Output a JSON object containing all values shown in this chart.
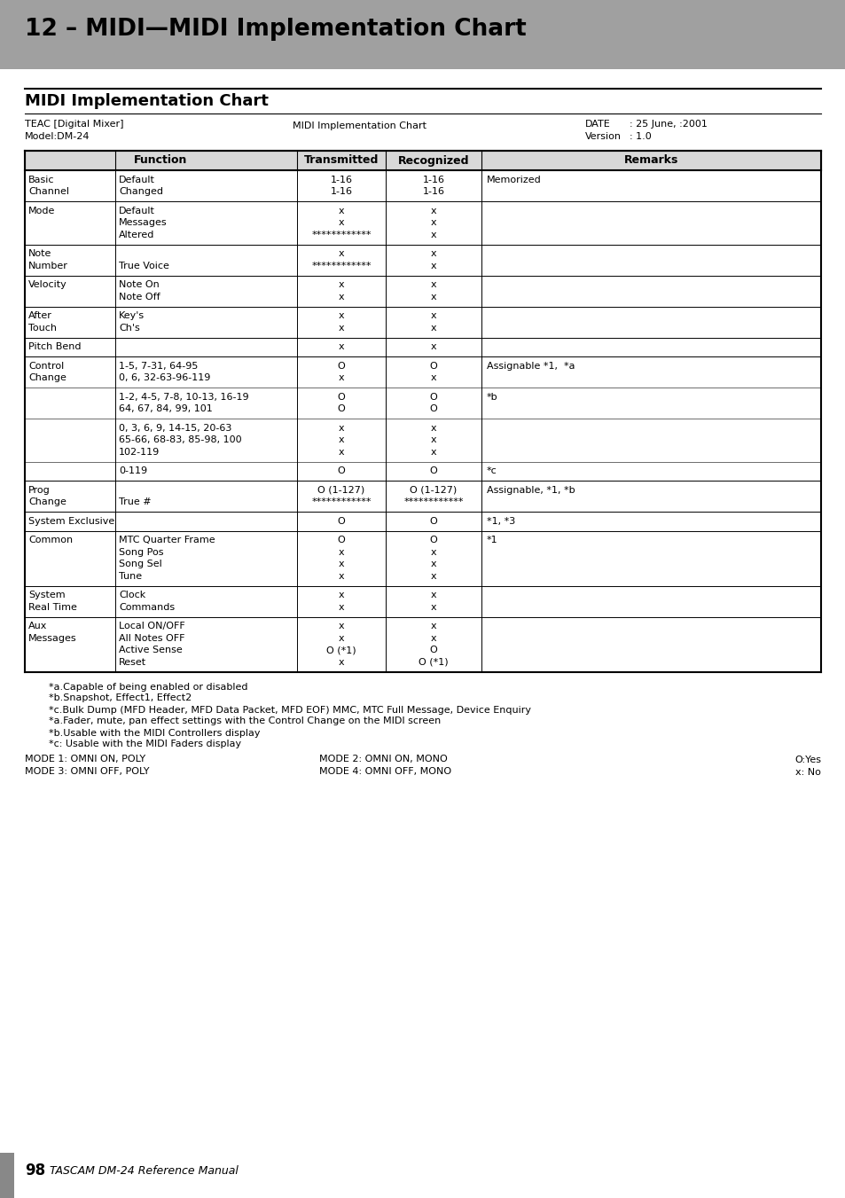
{
  "page_title": "12 – MIDI—MIDI Implementation Chart",
  "section_title": "MIDI Implementation Chart",
  "device_name": "TEAC [Digital Mixer]",
  "model": "Model:DM-24",
  "midi_chart_label": "MIDI Implementation Chart",
  "date_label": "DATE",
  "date_value": ": 25 June, :2001",
  "version_label": "Version",
  "version_value": ": 1.0",
  "table_headers": [
    "Function",
    "Transmitted",
    "Recognized",
    "Remarks"
  ],
  "footnotes": [
    "*a.Capable of being enabled or disabled",
    "*b.Snapshot, Effect1, Effect2",
    "*c.Bulk Dump (MFD Header, MFD Data Packet, MFD EOF) MMC, MTC Full Message, Device Enquiry",
    "*a.Fader, mute, pan effect settings with the Control Change on the MIDI screen",
    "*b.Usable with the MIDI Controllers display",
    "*c: Usable with the MIDI Faders display"
  ],
  "mode_lines": [
    [
      "MODE 1: OMNI ON, POLY",
      "MODE 2: OMNI ON, MONO",
      "O:Yes"
    ],
    [
      "MODE 3: OMNI OFF, POLY",
      "MODE 4: OMNI OFF, MONO",
      "x: No"
    ]
  ],
  "page_number": "98",
  "page_footer": "TASCAM DM-24 Reference Manual",
  "rows": [
    {
      "col1": [
        "Basic",
        "Channel"
      ],
      "col2": [
        "Default",
        "Changed"
      ],
      "col3": [
        "1-16",
        "1-16"
      ],
      "col4": [
        "1-16",
        "1-16"
      ],
      "col5": [
        "Memorized"
      ]
    },
    {
      "col1": [
        "Mode"
      ],
      "col2": [
        "Default",
        "Messages",
        "Altered"
      ],
      "col3": [
        "x",
        "x",
        "************"
      ],
      "col4": [
        "x",
        "x",
        "x"
      ],
      "col5": []
    },
    {
      "col1": [
        "Note",
        "Number"
      ],
      "col2": [
        "",
        "True Voice"
      ],
      "col3": [
        "x",
        "************"
      ],
      "col4": [
        "x",
        "x"
      ],
      "col5": []
    },
    {
      "col1": [
        "Velocity"
      ],
      "col2": [
        "Note On",
        "Note Off"
      ],
      "col3": [
        "x",
        "x"
      ],
      "col4": [
        "x",
        "x"
      ],
      "col5": []
    },
    {
      "col1": [
        "After",
        "Touch"
      ],
      "col2": [
        "Key's",
        "Ch's"
      ],
      "col3": [
        "x",
        "x"
      ],
      "col4": [
        "x",
        "x"
      ],
      "col5": []
    },
    {
      "col1": [
        "Pitch Bend"
      ],
      "col2": [
        ""
      ],
      "col3": [
        "x"
      ],
      "col4": [
        "x"
      ],
      "col5": []
    },
    {
      "col1": [
        "Control",
        "Change"
      ],
      "col2": [
        "1-5, 7-31, 64-95",
        "0, 6, 32-63-96-119"
      ],
      "col3": [
        "O",
        "x"
      ],
      "col4": [
        "O",
        "x"
      ],
      "col5": [
        "Assignable *1,  *a"
      ]
    },
    {
      "col1": [],
      "col2": [
        "1-2, 4-5, 7-8, 10-13, 16-19",
        "64, 67, 84, 99, 101"
      ],
      "col3": [
        "O",
        "O"
      ],
      "col4": [
        "O",
        "O"
      ],
      "col5": [
        "*b"
      ],
      "inner": true
    },
    {
      "col1": [],
      "col2": [
        "0, 3, 6, 9, 14-15, 20-63",
        "65-66, 68-83, 85-98, 100",
        "102-119"
      ],
      "col3": [
        "x",
        "x",
        "x"
      ],
      "col4": [
        "x",
        "x",
        "x"
      ],
      "col5": [],
      "inner": true
    },
    {
      "col1": [],
      "col2": [
        "0-119"
      ],
      "col3": [
        "O"
      ],
      "col4": [
        "O"
      ],
      "col5": [
        "*c"
      ],
      "inner": true
    },
    {
      "col1": [
        "Prog",
        "Change"
      ],
      "col2": [
        "",
        "True #"
      ],
      "col3": [
        "O (1-127)",
        "************"
      ],
      "col4": [
        "O (1-127)",
        "************"
      ],
      "col5": [
        "Assignable, *1, *b"
      ]
    },
    {
      "col1": [
        "System Exclusive"
      ],
      "col2": [
        ""
      ],
      "col3": [
        "O"
      ],
      "col4": [
        "O"
      ],
      "col5": [
        "*1, *3"
      ]
    },
    {
      "col1": [
        "Common"
      ],
      "col2": [
        "MTC Quarter Frame",
        "Song Pos",
        "Song Sel",
        "Tune"
      ],
      "col3": [
        "O",
        "x",
        "x",
        "x"
      ],
      "col4": [
        "O",
        "x",
        "x",
        "x"
      ],
      "col5": [
        "*1"
      ]
    },
    {
      "col1": [
        "System",
        "Real Time"
      ],
      "col2": [
        "Clock",
        "Commands"
      ],
      "col3": [
        "x",
        "x"
      ],
      "col4": [
        "x",
        "x"
      ],
      "col5": []
    },
    {
      "col1": [
        "Aux",
        "Messages"
      ],
      "col2": [
        "Local ON/OFF",
        "All Notes OFF",
        "Active Sense",
        "Reset"
      ],
      "col3": [
        "x",
        "x",
        "O (*1)",
        "x"
      ],
      "col4": [
        "x",
        "x",
        "O",
        "O (*1)"
      ],
      "col5": []
    }
  ]
}
